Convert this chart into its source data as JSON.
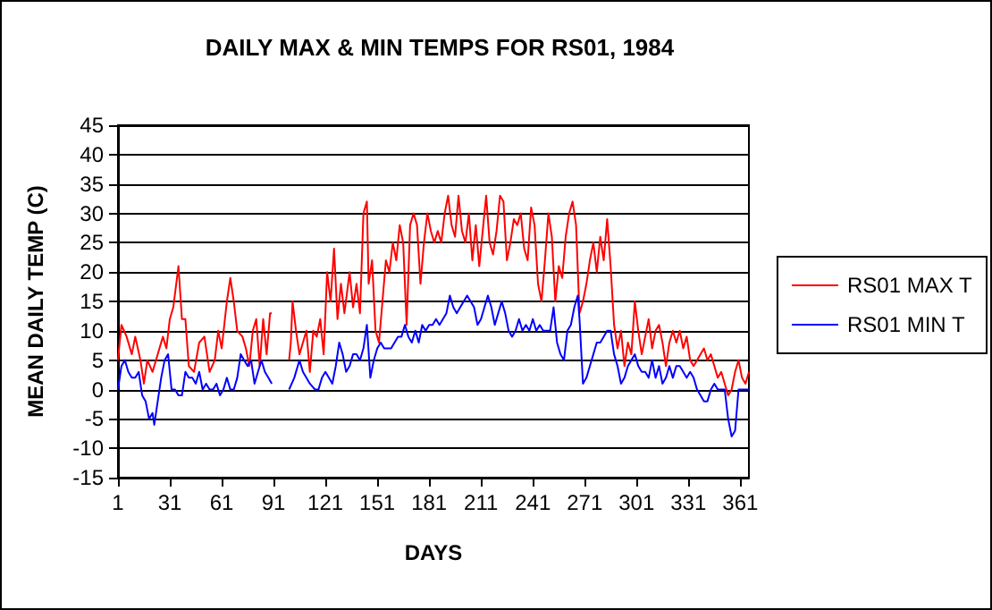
{
  "chart_data": {
    "type": "line",
    "title": "DAILY MAX & MIN TEMPS FOR RS01, 1984",
    "xlabel": "DAYS",
    "ylabel": "MEAN DAILY TEMP (C)",
    "xlim": [
      1,
      366
    ],
    "xticks": [
      1,
      31,
      61,
      91,
      121,
      151,
      181,
      211,
      241,
      271,
      301,
      331,
      361
    ],
    "ylim": [
      -15,
      45
    ],
    "yticks": [
      -15,
      -10,
      -5,
      0,
      5,
      10,
      15,
      20,
      25,
      30,
      35,
      40,
      45
    ],
    "grid": "y",
    "legend": "right",
    "marker": "none",
    "line_style": "solid",
    "series": [
      {
        "name": "RS01 MAX T",
        "color": "#ff0000",
        "x": [
          1,
          3,
          6,
          9,
          11,
          14,
          16,
          18,
          21,
          24,
          27,
          29,
          31,
          33,
          36,
          38,
          40,
          42,
          45,
          48,
          51,
          54,
          57,
          59,
          61,
          64,
          66,
          68,
          70,
          73,
          75,
          77,
          79,
          81,
          83,
          85,
          87,
          89,
          90,
          95,
          100,
          101,
          102,
          104,
          106,
          108,
          110,
          112,
          114,
          116,
          118,
          120,
          122,
          124,
          126,
          128,
          130,
          132,
          135,
          137,
          139,
          141,
          143,
          145,
          146,
          148,
          150,
          152,
          154,
          156,
          158,
          160,
          162,
          164,
          166,
          168,
          170,
          172,
          174,
          176,
          178,
          180,
          182,
          184,
          186,
          188,
          190,
          192,
          194,
          196,
          198,
          200,
          202,
          204,
          206,
          208,
          210,
          212,
          214,
          216,
          218,
          220,
          222,
          224,
          226,
          228,
          230,
          232,
          234,
          236,
          238,
          240,
          242,
          244,
          246,
          248,
          250,
          252,
          254,
          256,
          258,
          260,
          262,
          264,
          266,
          268,
          270,
          272,
          274,
          276,
          278,
          280,
          282,
          284,
          286,
          288,
          290,
          292,
          294,
          296,
          298,
          300,
          302,
          304,
          306,
          308,
          310,
          312,
          314,
          316,
          318,
          320,
          322,
          324,
          326,
          328,
          330,
          332,
          334,
          336,
          338,
          340,
          342,
          344,
          346,
          348,
          350,
          352,
          354,
          356,
          358,
          360,
          362,
          364,
          366
        ],
        "values": [
          5,
          11,
          9,
          6,
          9,
          5,
          1,
          5,
          3,
          6,
          9,
          7,
          12,
          14,
          21,
          12,
          12,
          4,
          3,
          8,
          9,
          3,
          5,
          10,
          7,
          15,
          19,
          15,
          10,
          9,
          7,
          4,
          10,
          12,
          4,
          12,
          6,
          13,
          13,
          null,
          5,
          8,
          15,
          10,
          6,
          8,
          10,
          3,
          10,
          9,
          12,
          6,
          20,
          15,
          24,
          12,
          18,
          13,
          20,
          14,
          18,
          13,
          30,
          32,
          18,
          22,
          10,
          8,
          15,
          22,
          20,
          25,
          22,
          28,
          25,
          11,
          28,
          30,
          28,
          18,
          25,
          30,
          27,
          25,
          27,
          25,
          30,
          33,
          28,
          26,
          33,
          27,
          25,
          30,
          22,
          28,
          21,
          27,
          33,
          25,
          23,
          27,
          33,
          32,
          22,
          25,
          29,
          28,
          30,
          24,
          22,
          31,
          28,
          18,
          15,
          22,
          30,
          26,
          15,
          21,
          19,
          26,
          30,
          32,
          28,
          13,
          15,
          18,
          22,
          25,
          20,
          26,
          22,
          29,
          21,
          11,
          7,
          10,
          4,
          8,
          6,
          15,
          10,
          6,
          9,
          12,
          7,
          10,
          11,
          8,
          4,
          8,
          10,
          8,
          10,
          7,
          9,
          5,
          4,
          5,
          6,
          7,
          5,
          6,
          4,
          2,
          3,
          1,
          -1,
          0,
          3,
          5,
          2,
          1,
          3
        ]
      },
      {
        "name": "RS01 MIN T",
        "color": "#0000ff",
        "x": [
          1,
          3,
          5,
          7,
          9,
          11,
          13,
          15,
          17,
          19,
          21,
          22,
          24,
          26,
          28,
          30,
          32,
          34,
          36,
          38,
          40,
          42,
          44,
          46,
          48,
          50,
          52,
          54,
          56,
          58,
          60,
          62,
          64,
          66,
          68,
          70,
          72,
          74,
          76,
          78,
          80,
          82,
          84,
          86,
          88,
          90,
          95,
          100,
          103,
          106,
          108,
          110,
          112,
          115,
          117,
          119,
          121,
          123,
          125,
          127,
          129,
          131,
          133,
          135,
          137,
          139,
          141,
          143,
          145,
          147,
          149,
          151,
          153,
          155,
          157,
          159,
          161,
          163,
          165,
          167,
          169,
          171,
          173,
          175,
          177,
          179,
          181,
          183,
          185,
          187,
          189,
          191,
          193,
          195,
          197,
          199,
          201,
          203,
          205,
          207,
          209,
          211,
          213,
          215,
          217,
          219,
          221,
          223,
          225,
          227,
          229,
          231,
          233,
          235,
          237,
          239,
          241,
          243,
          245,
          247,
          249,
          251,
          253,
          255,
          257,
          259,
          261,
          263,
          265,
          267,
          268,
          270,
          272,
          274,
          276,
          278,
          280,
          282,
          284,
          286,
          288,
          290,
          292,
          294,
          296,
          298,
          300,
          302,
          304,
          306,
          308,
          310,
          312,
          314,
          316,
          318,
          320,
          322,
          324,
          326,
          328,
          330,
          332,
          334,
          336,
          338,
          340,
          342,
          344,
          346,
          348,
          350,
          352,
          354,
          356,
          358,
          360,
          362,
          364,
          366
        ],
        "values": [
          0,
          4,
          5,
          3,
          2,
          2,
          3,
          -1,
          -2,
          -5,
          -4,
          -6,
          -2,
          2,
          5,
          6,
          0,
          0,
          -1,
          -1,
          3,
          2,
          2,
          1,
          3,
          0,
          1,
          0,
          0,
          1,
          -1,
          0,
          2,
          0,
          0,
          2,
          6,
          5,
          4,
          5,
          1,
          3,
          5,
          3,
          2,
          1,
          null,
          0,
          2,
          5,
          3,
          2,
          1,
          0,
          0,
          2,
          3,
          2,
          1,
          4,
          8,
          6,
          3,
          4,
          6,
          6,
          5,
          7,
          11,
          2,
          5,
          7,
          8,
          7,
          7,
          7,
          8,
          9,
          9,
          11,
          9,
          8,
          10,
          8,
          11,
          10,
          11,
          11,
          12,
          11,
          12,
          13,
          16,
          14,
          13,
          14,
          15,
          16,
          15,
          14,
          11,
          12,
          14,
          16,
          14,
          11,
          13,
          15,
          13,
          10,
          9,
          10,
          12,
          10,
          11,
          10,
          12,
          10,
          11,
          10,
          10,
          10,
          14,
          8,
          6,
          5,
          10,
          11,
          14,
          16,
          12,
          1,
          2,
          4,
          6,
          8,
          8,
          9,
          10,
          10,
          6,
          4,
          1,
          2,
          4,
          5,
          6,
          4,
          3,
          3,
          2,
          5,
          2,
          4,
          1,
          2,
          4,
          2,
          4,
          4,
          3,
          2,
          3,
          2,
          0,
          -1,
          -2,
          -2,
          0,
          1,
          0,
          0,
          0,
          -5,
          -8,
          -7,
          0,
          0,
          0,
          0
        ]
      }
    ]
  }
}
